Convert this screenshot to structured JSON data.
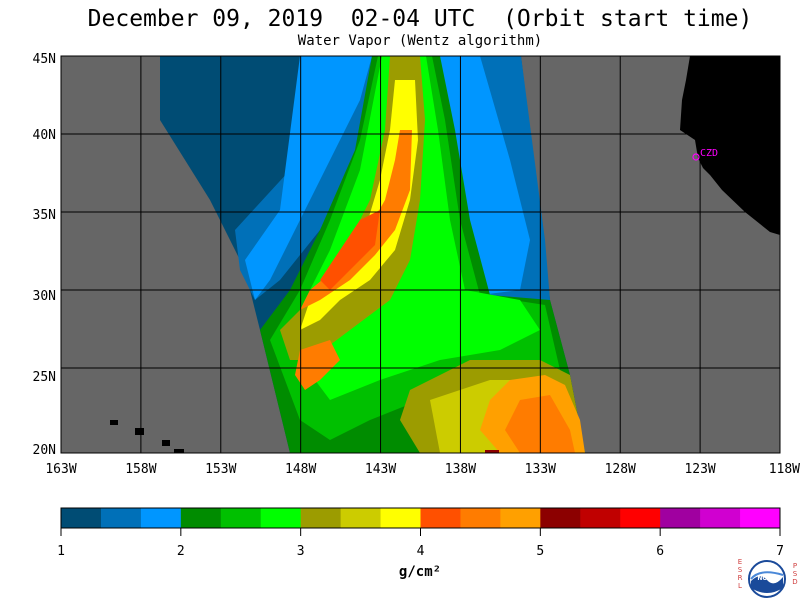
{
  "title": "December 09, 2019  02-04 UTC  (Orbit start time)",
  "subtitle": "Water Vapor (Wentz algorithm)",
  "lat_labels": [
    "45N",
    "40N",
    "35N",
    "30N",
    "25N",
    "20N"
  ],
  "lon_labels": [
    "163W",
    "158W",
    "153W",
    "148W",
    "143W",
    "138W",
    "133W",
    "128W",
    "123W",
    "118W"
  ],
  "colorbar": {
    "ticks": [
      "1",
      "2",
      "3",
      "4",
      "5",
      "6",
      "7"
    ],
    "units": "g/cm²",
    "colors": [
      "#004c74",
      "#0070b8",
      "#0096ff",
      "#008c00",
      "#00c000",
      "#00ff00",
      "#9c9c00",
      "#cccc00",
      "#ffff00",
      "#ff5000",
      "#ff7c00",
      "#ffa000",
      "#8c0000",
      "#c00000",
      "#ff0000",
      "#a000a0",
      "#d000d0",
      "#ff00ff"
    ]
  },
  "station_label": "CZD",
  "logo": {
    "left_letters": "ESRL",
    "right_letters": "PSD",
    "emblem": "NOAA"
  },
  "colors": {
    "land": "#000000",
    "no_data": "#666666",
    "station": "#ff00ff"
  }
}
